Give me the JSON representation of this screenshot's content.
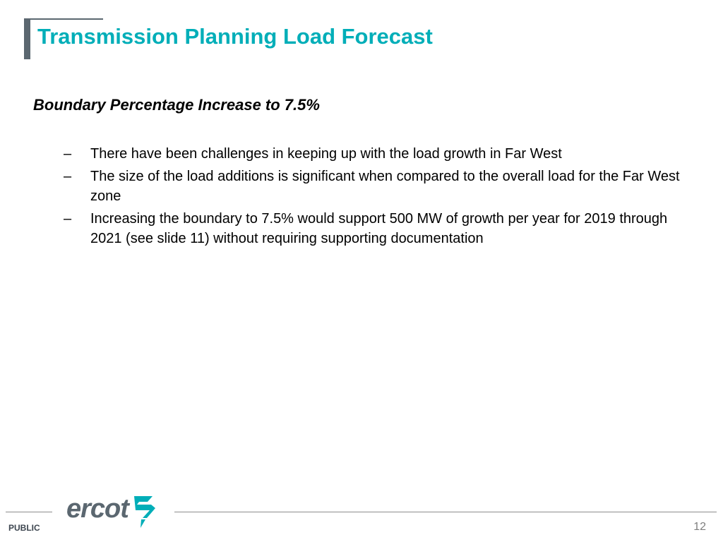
{
  "slide": {
    "title": "Transmission Planning Load Forecast",
    "subheading": "Boundary Percentage Increase to 7.5%",
    "bullet_marker": "–",
    "bullets": [
      "There have been challenges in keeping up with the load growth in Far West",
      "The size of the load additions is significant when compared to the overall load for the Far West zone",
      "Increasing the boundary to 7.5% would support 500 MW of growth per year for 2019 through 2021 (see slide 11) without requiring supporting documentation"
    ]
  },
  "footer": {
    "classification": "PUBLIC",
    "logo_text": "ercot",
    "logo_icon": "ercot-lightning-icon",
    "page_number": "12"
  },
  "colors": {
    "title": "#00aeb8",
    "accent_gray": "#5b6770",
    "text": "#000000",
    "logo_mark": "#00aeb8"
  }
}
